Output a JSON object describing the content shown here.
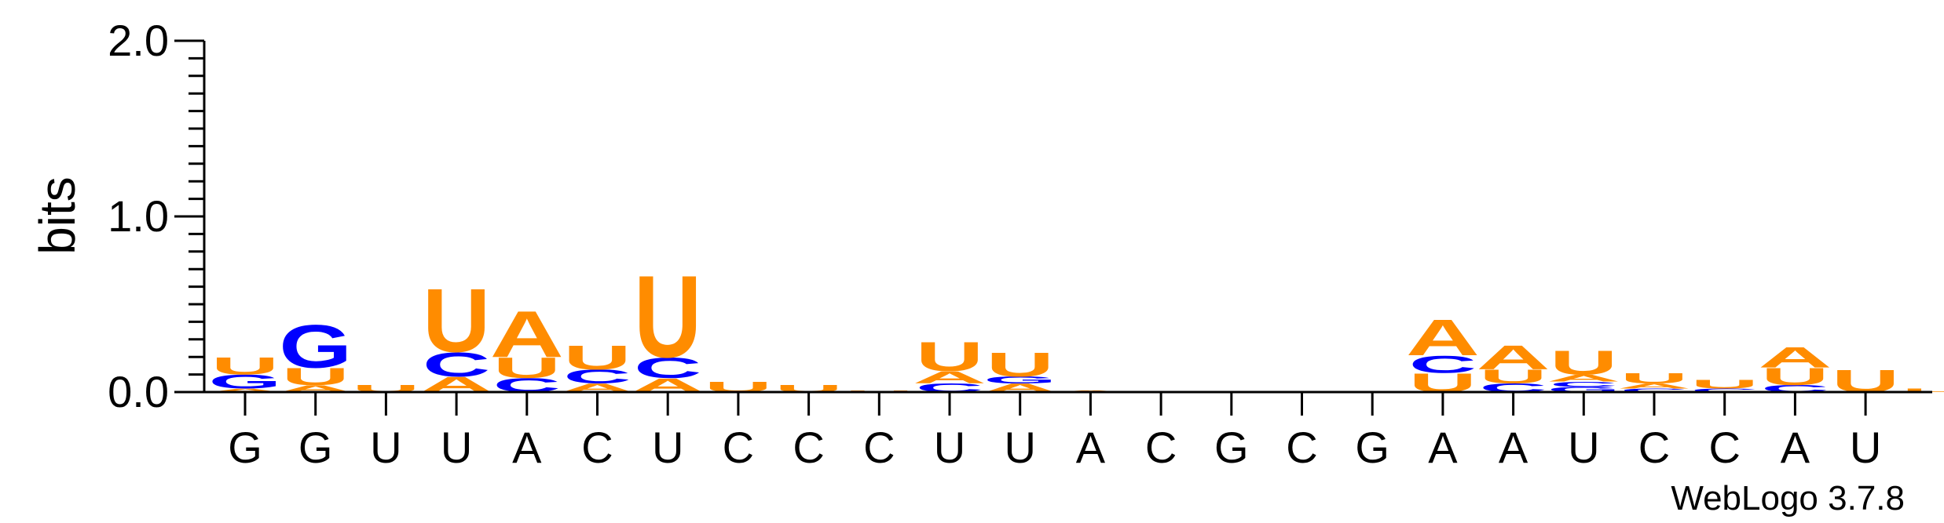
{
  "chart_data": {
    "type": "sequence-logo",
    "ylabel": "bits",
    "ylim": [
      0,
      2.0
    ],
    "yticks": [
      0.0,
      0.5,
      1.0,
      1.5,
      2.0
    ],
    "ytick_labels": [
      "0.0",
      "1.0",
      "2.0"
    ],
    "footer": "WebLogo 3.7.8",
    "colors": {
      "A": "#FF8C00",
      "U": "#FF8C00",
      "C": "#0000FF",
      "G": "#0000FF"
    },
    "positions": [
      {
        "label": "G",
        "stack": [
          [
            "A",
            0.02
          ],
          [
            "G",
            0.08
          ],
          [
            "U",
            0.1
          ]
        ]
      },
      {
        "label": "G",
        "stack": [
          [
            "A",
            0.04
          ],
          [
            "U",
            0.1
          ],
          [
            "G",
            0.25
          ]
        ]
      },
      {
        "label": "U",
        "stack": [
          [
            "U",
            0.04
          ]
        ]
      },
      {
        "label": "U",
        "stack": [
          [
            "A",
            0.09
          ],
          [
            "C",
            0.14
          ],
          [
            "U",
            0.37
          ]
        ]
      },
      {
        "label": "A",
        "stack": [
          [
            "C",
            0.08
          ],
          [
            "U",
            0.12
          ],
          [
            "A",
            0.27
          ]
        ]
      },
      {
        "label": "C",
        "stack": [
          [
            "A",
            0.05
          ],
          [
            "C",
            0.08
          ],
          [
            "U",
            0.14
          ]
        ]
      },
      {
        "label": "U",
        "stack": [
          [
            "A",
            0.08
          ],
          [
            "C",
            0.12
          ],
          [
            "U",
            0.48
          ]
        ]
      },
      {
        "label": "C",
        "stack": [
          [
            "U",
            0.06
          ]
        ]
      },
      {
        "label": "C",
        "stack": [
          [
            "U",
            0.04
          ]
        ]
      },
      {
        "label": "C",
        "stack": [
          [
            "U",
            0.01
          ]
        ]
      },
      {
        "label": "U",
        "stack": [
          [
            "C",
            0.05
          ],
          [
            "A",
            0.07
          ],
          [
            "U",
            0.17
          ]
        ]
      },
      {
        "label": "U",
        "stack": [
          [
            "A",
            0.05
          ],
          [
            "G",
            0.04
          ],
          [
            "U",
            0.14
          ]
        ]
      },
      {
        "label": "A",
        "stack": [
          [
            "A",
            0.01
          ]
        ]
      },
      {
        "label": "C",
        "stack": []
      },
      {
        "label": "G",
        "stack": []
      },
      {
        "label": "C",
        "stack": []
      },
      {
        "label": "G",
        "stack": []
      },
      {
        "label": "A",
        "stack": [
          [
            "U",
            0.11
          ],
          [
            "C",
            0.1
          ],
          [
            "A",
            0.21
          ]
        ]
      },
      {
        "label": "A",
        "stack": [
          [
            "C",
            0.05
          ],
          [
            "U",
            0.08
          ],
          [
            "A",
            0.14
          ]
        ]
      },
      {
        "label": "U",
        "stack": [
          [
            "G",
            0.03
          ],
          [
            "C",
            0.03
          ],
          [
            "A",
            0.04
          ],
          [
            "U",
            0.14
          ]
        ]
      },
      {
        "label": "C",
        "stack": [
          [
            "C",
            0.02
          ],
          [
            "A",
            0.03
          ],
          [
            "U",
            0.06
          ]
        ]
      },
      {
        "label": "C",
        "stack": [
          [
            "C",
            0.02
          ],
          [
            "U",
            0.05
          ]
        ]
      },
      {
        "label": "A",
        "stack": [
          [
            "C",
            0.04
          ],
          [
            "U",
            0.1
          ],
          [
            "A",
            0.12
          ]
        ]
      },
      {
        "label": "U",
        "stack": [
          [
            "U",
            0.13
          ]
        ]
      },
      {
        "label": "",
        "stack": [
          [
            "U",
            0.02
          ]
        ]
      }
    ]
  }
}
